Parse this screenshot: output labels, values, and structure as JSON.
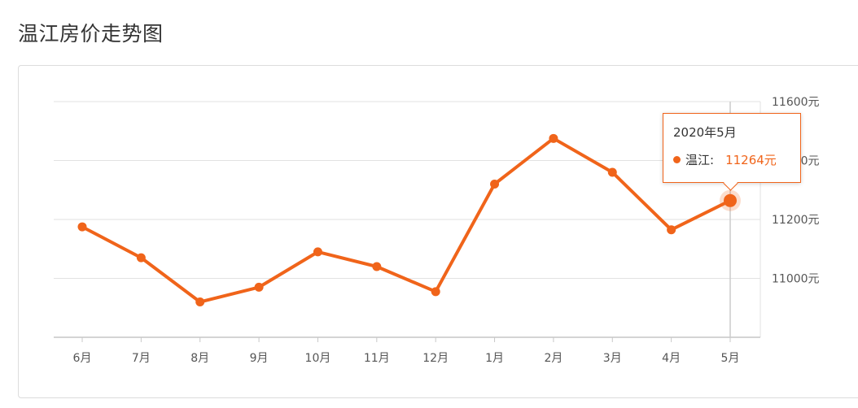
{
  "page": {
    "title": "温江房价走势图"
  },
  "colors": {
    "series": "#f0641a",
    "grid": "#e2e2e2",
    "text": "#333333",
    "axis_text": "#555555"
  },
  "chart_data": {
    "type": "line",
    "title": "温江房价走势图",
    "xlabel": "",
    "ylabel": "",
    "categories": [
      "6月",
      "7月",
      "8月",
      "9月",
      "10月",
      "11月",
      "12月",
      "1月",
      "2月",
      "3月",
      "4月",
      "5月"
    ],
    "series": [
      {
        "name": "温江",
        "values": [
          11175,
          11070,
          10920,
          10970,
          11090,
          11040,
          10955,
          11320,
          11475,
          11360,
          11165,
          11264
        ]
      }
    ],
    "ylim": [
      10800,
      11600
    ],
    "y_ticks": [
      "11000元",
      "11200元",
      "11400元",
      "11600元"
    ],
    "y_axis_position": "right",
    "grid": true,
    "highlight_index": 11
  },
  "tooltip": {
    "date": "2020年5月",
    "series_label": "温江:",
    "value": "11264元"
  }
}
